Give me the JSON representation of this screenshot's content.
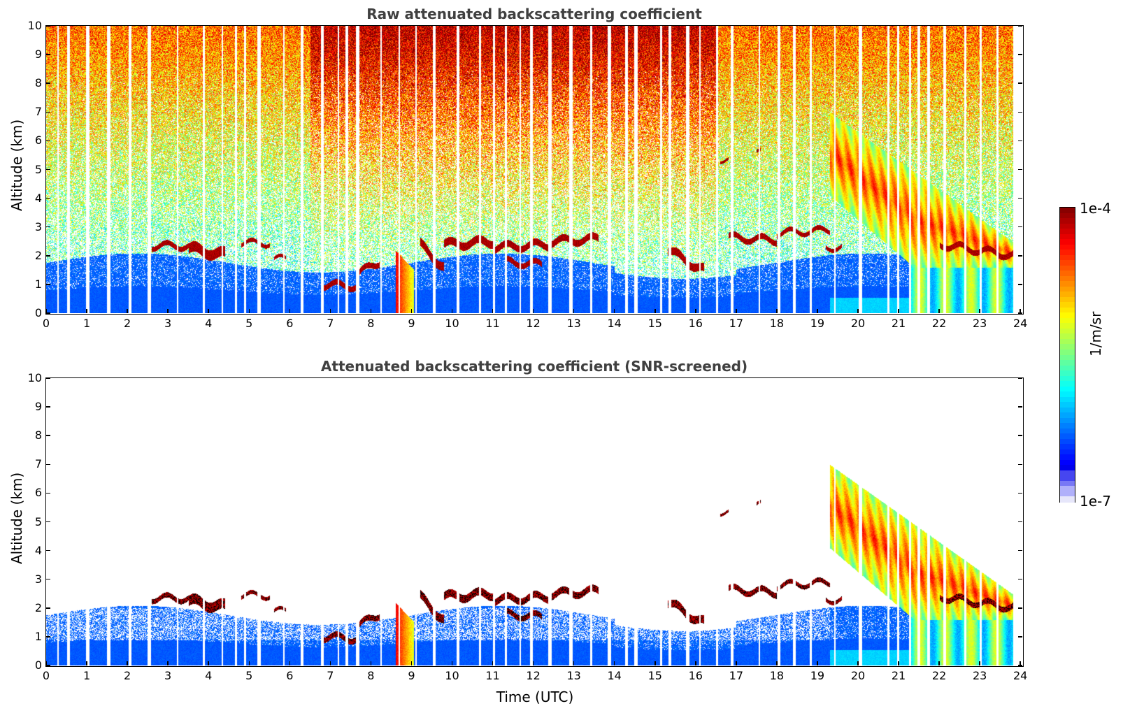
{
  "chart_data": [
    {
      "type": "heatmap",
      "id": "raw",
      "title": "Raw attenuated backscattering coefficient",
      "xlabel": "",
      "ylabel": "Altitude (km)",
      "xlim": [
        0,
        24
      ],
      "ylim": [
        0,
        10
      ],
      "xticks": [
        "0",
        "1",
        "2",
        "3",
        "4",
        "5",
        "6",
        "7",
        "8",
        "9",
        "10",
        "11",
        "12",
        "13",
        "14",
        "15",
        "16",
        "17",
        "18",
        "19",
        "20",
        "21",
        "22",
        "23",
        "24"
      ],
      "yticks": [
        "0",
        "1",
        "2",
        "3",
        "4",
        "5",
        "6",
        "7",
        "8",
        "9",
        "10"
      ],
      "screened": false,
      "features": [
        {
          "name": "cloud layer",
          "x": [
            2.6,
            4.4
          ],
          "y": [
            2.0,
            2.4
          ]
        },
        {
          "name": "cloud layer",
          "x": [
            4.8,
            5.5
          ],
          "y": [
            2.4,
            2.5
          ]
        },
        {
          "name": "low cloud",
          "x": [
            6.8,
            7.6
          ],
          "y": [
            0.8,
            1.1
          ]
        },
        {
          "name": "precipitation plume",
          "x": [
            8.6,
            9.0
          ],
          "y": [
            0,
            2.2
          ]
        },
        {
          "name": "cloud layer",
          "x": [
            9.2,
            13.6
          ],
          "y": [
            1.5,
            2.8
          ]
        },
        {
          "name": "cloud layer",
          "x": [
            15.3,
            16.3
          ],
          "y": [
            1.4,
            2.3
          ]
        },
        {
          "name": "cloud layer",
          "x": [
            16.8,
            19.3
          ],
          "y": [
            2.4,
            2.9
          ]
        },
        {
          "name": "descending aerosol/cloud band",
          "x": [
            19.3,
            23.9
          ],
          "y": [
            1.7,
            7.0
          ]
        }
      ]
    },
    {
      "type": "heatmap",
      "id": "screened",
      "title": "Attenuated backscattering coefficient (SNR-screened)",
      "xlabel": "Time (UTC)",
      "ylabel": "Altitude (km)",
      "xlim": [
        0,
        24
      ],
      "ylim": [
        0,
        10
      ],
      "xticks": [
        "0",
        "1",
        "2",
        "3",
        "4",
        "5",
        "6",
        "7",
        "8",
        "9",
        "10",
        "11",
        "12",
        "13",
        "14",
        "15",
        "16",
        "17",
        "18",
        "19",
        "20",
        "21",
        "22",
        "23",
        "24"
      ],
      "yticks": [
        "0",
        "1",
        "2",
        "3",
        "4",
        "5",
        "6",
        "7",
        "8",
        "9",
        "10"
      ],
      "screened": true
    }
  ],
  "colorbar": {
    "label": "1/m/sr",
    "max_label": "1e-4",
    "min_label": "1e-7",
    "scale": "log",
    "range": [
      1e-07,
      0.0001
    ]
  }
}
